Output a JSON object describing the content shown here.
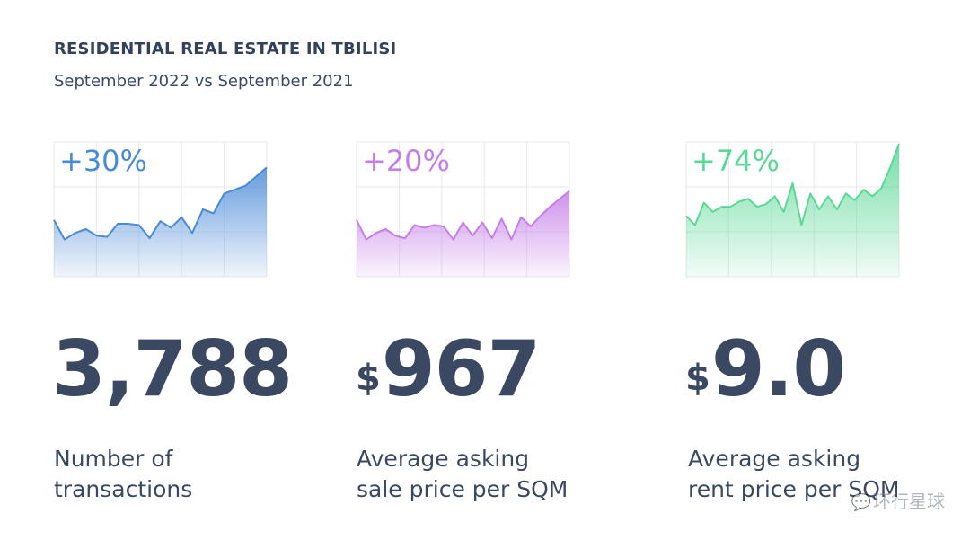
{
  "header": {
    "title": "RESIDENTIAL REAL ESTATE IN TBILISI",
    "subtitle": "September 2022 vs September 2021"
  },
  "metrics": [
    {
      "change": "+30%",
      "currency": "",
      "value": "3,788",
      "label_line1": "Number of",
      "label_line2": "transactions",
      "color": "#4a8ad8"
    },
    {
      "change": "+20%",
      "currency": "$",
      "value": "967",
      "label_line1": "Average asking",
      "label_line2": "sale price per SQM",
      "color": "#c57ee8"
    },
    {
      "change": "+74%",
      "currency": "$",
      "value": "9.0",
      "label_line1": "Average asking",
      "label_line2": "rent price per SQM",
      "color": "#5ad896"
    }
  ],
  "watermark": "环行星球",
  "chart_data": [
    {
      "type": "area",
      "title": "+30%",
      "ylim": [
        0,
        100
      ],
      "grid": true,
      "values": [
        42,
        27,
        32,
        35,
        30,
        29,
        39,
        39,
        38,
        28,
        41,
        36,
        44,
        32,
        50,
        47,
        62,
        65,
        68,
        75,
        82
      ]
    },
    {
      "type": "area",
      "title": "+20%",
      "ylim": [
        0,
        100
      ],
      "grid": true,
      "values": [
        42,
        27,
        32,
        35,
        30,
        28,
        38,
        36,
        38,
        37,
        27,
        40,
        30,
        40,
        28,
        43,
        27,
        44,
        37,
        45,
        52,
        58,
        64
      ]
    },
    {
      "type": "area",
      "title": "+74%",
      "ylim": [
        0,
        100
      ],
      "grid": true,
      "values": [
        45,
        38,
        55,
        48,
        52,
        52,
        56,
        58,
        52,
        54,
        60,
        48,
        70,
        38,
        62,
        50,
        60,
        50,
        62,
        57,
        65,
        60,
        66,
        82,
        100
      ]
    }
  ]
}
